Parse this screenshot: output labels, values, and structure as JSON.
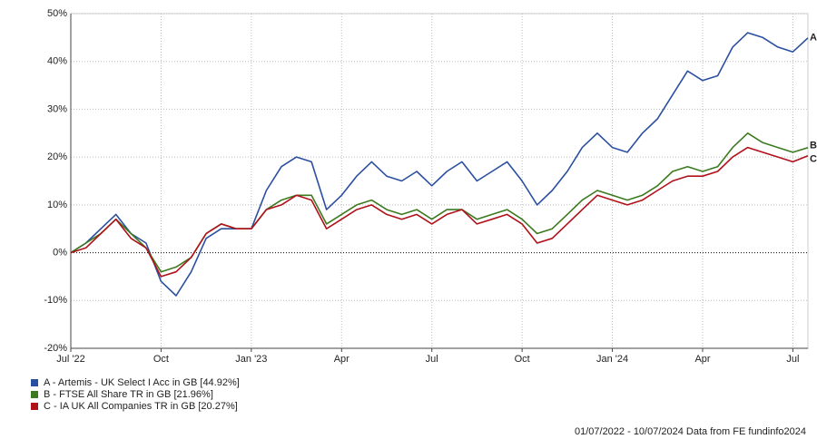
{
  "chart_data": {
    "type": "line",
    "categories": [
      "Jul '22",
      null,
      null,
      null,
      null,
      null,
      "Oct",
      null,
      null,
      null,
      null,
      null,
      "Jan '23",
      null,
      null,
      null,
      null,
      null,
      "Apr",
      null,
      null,
      null,
      null,
      null,
      "Jul",
      null,
      null,
      null,
      null,
      null,
      "Oct",
      null,
      null,
      null,
      null,
      null,
      "Jan '24",
      null,
      null,
      null,
      null,
      null,
      "Apr",
      null,
      null,
      null,
      null,
      null,
      "Jul",
      null
    ],
    "series": [
      {
        "name": "A - Artemis - UK Select I Acc in GB [44.92%]",
        "label": "A",
        "color": "#2b4fa0",
        "values": [
          0,
          2,
          5,
          8,
          4,
          2,
          -6,
          -9,
          -4,
          3,
          5,
          5,
          5,
          13,
          18,
          20,
          19,
          9,
          12,
          16,
          19,
          16,
          15,
          17,
          14,
          17,
          19,
          15,
          17,
          19,
          15,
          10,
          13,
          17,
          22,
          25,
          22,
          21,
          25,
          28,
          33,
          38,
          36,
          37,
          43,
          46,
          45,
          43,
          42,
          44.92
        ]
      },
      {
        "name": "B - FTSE All Share TR in GB [21.96%]",
        "label": "B",
        "color": "#3b7a1f",
        "values": [
          0,
          2,
          4,
          7,
          4,
          1,
          -4,
          -3,
          -1,
          4,
          6,
          5,
          5,
          9,
          11,
          12,
          12,
          6,
          8,
          10,
          11,
          9,
          8,
          9,
          7,
          9,
          9,
          7,
          8,
          9,
          7,
          4,
          5,
          8,
          11,
          13,
          12,
          11,
          12,
          14,
          17,
          18,
          17,
          18,
          22,
          25,
          23,
          22,
          21,
          21.96
        ]
      },
      {
        "name": "C - IA UK All Companies TR in GB [20.27%]",
        "label": "C",
        "color": "#b0111a",
        "values": [
          0,
          1,
          4,
          7,
          3,
          1,
          -5,
          -4,
          -1,
          4,
          6,
          5,
          5,
          9,
          10,
          12,
          11,
          5,
          7,
          9,
          10,
          8,
          7,
          8,
          6,
          8,
          9,
          6,
          7,
          8,
          6,
          2,
          3,
          6,
          9,
          12,
          11,
          10,
          11,
          13,
          15,
          16,
          16,
          17,
          20,
          22,
          21,
          20,
          19,
          20.27
        ]
      }
    ],
    "ylim": [
      -20,
      50
    ],
    "yticks": [
      {
        "value": -20,
        "label": "-20%"
      },
      {
        "value": -10,
        "label": "-10%"
      },
      {
        "value": 0,
        "label": "0%"
      },
      {
        "value": 10,
        "label": "10%"
      },
      {
        "value": 20,
        "label": "20%"
      },
      {
        "value": 30,
        "label": "30%"
      },
      {
        "value": 40,
        "label": "40%"
      },
      {
        "value": 50,
        "label": "50%"
      }
    ],
    "grid": true,
    "legend": "bottom-left",
    "footer": "01/07/2022 - 10/07/2024 Data from FE fundinfo2024"
  }
}
